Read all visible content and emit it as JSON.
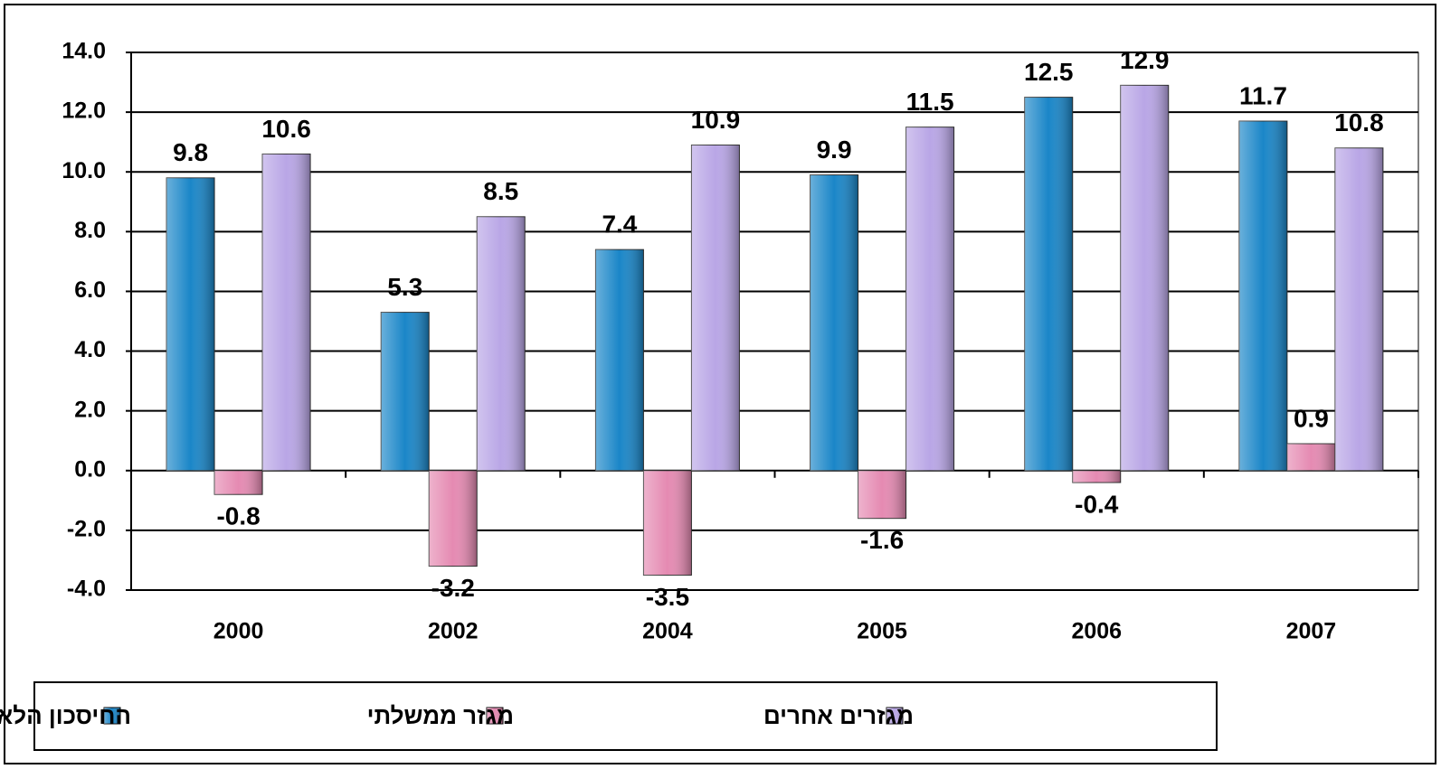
{
  "chart_data": {
    "type": "bar",
    "categories": [
      "2000",
      "2002",
      "2004",
      "2005",
      "2006",
      "2007"
    ],
    "series": [
      {
        "name": "החיסכון הלאומי",
        "color": "#1a86c8",
        "values": [
          9.8,
          5.3,
          7.4,
          9.9,
          12.5,
          11.7
        ]
      },
      {
        "name": "מגזר ממשלתי",
        "color": "#e58ab2",
        "values": [
          -0.8,
          -3.2,
          -3.5,
          -1.6,
          -0.4,
          0.9
        ]
      },
      {
        "name": "מגזרים אחרים",
        "color": "#b9a6e6",
        "values": [
          10.6,
          8.5,
          10.9,
          11.5,
          12.9,
          10.8
        ]
      }
    ],
    "ylim": [
      -4,
      14
    ],
    "yticks": [
      {
        "value": -4,
        "label": "-4.0"
      },
      {
        "value": -2,
        "label": "-2.0"
      },
      {
        "value": 0,
        "label": "0.0"
      },
      {
        "value": 2,
        "label": "2.0"
      },
      {
        "value": 4,
        "label": "4.0"
      },
      {
        "value": 6,
        "label": "6.0"
      },
      {
        "value": 8,
        "label": "8.0"
      },
      {
        "value": 10,
        "label": "10.0"
      },
      {
        "value": 12,
        "label": "12.0"
      },
      {
        "value": 14,
        "label": "14.0"
      }
    ],
    "grid": true,
    "legend": "bottom"
  }
}
